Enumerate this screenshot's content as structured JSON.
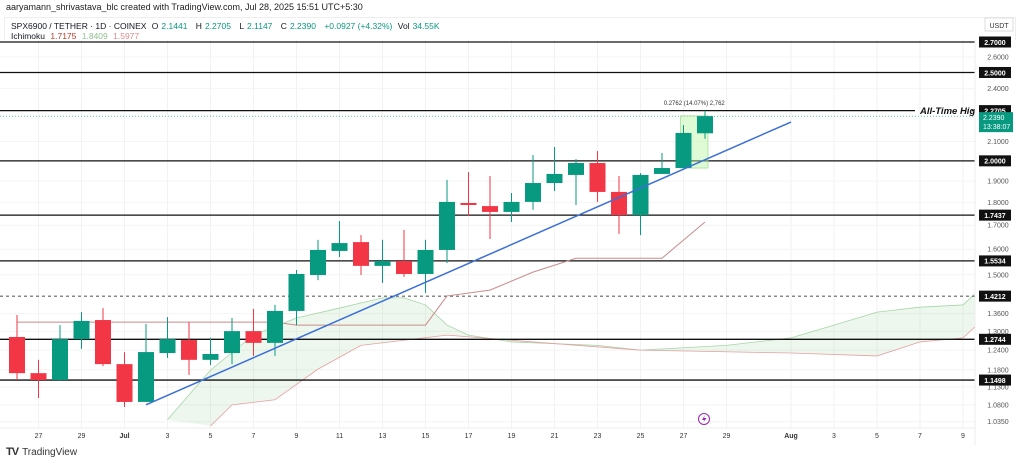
{
  "credit": "aaryamann_shrivastava_blc created with TradingView.com, Jul 28, 2025 15:51 UTC+5:30",
  "legend": {
    "symbol": "SPX6900 / TETHER · 1D · COINEX",
    "open_label": "O",
    "open": "2.1441",
    "high_label": "H",
    "high": "2.2705",
    "low_label": "L",
    "low": "2.1147",
    "close_label": "C",
    "close": "2.2390",
    "change": "+0.0927 (+4.32%)",
    "vol_label": "Vol",
    "vol": "34.55K",
    "indicator": "Ichimoku",
    "ichimoku_values": [
      "1.7175",
      "1.8409",
      "1.5977"
    ]
  },
  "brand": "TradingView",
  "colors": {
    "up": "#089981",
    "down": "#f23645",
    "trendline": "#3a6fd8",
    "cloud": "#4caf50",
    "ichimoku_line": "#c98b8b"
  },
  "chart_data": {
    "type": "candlestick",
    "scale": "log",
    "currency": "USDT",
    "ylim": [
      1.0,
      2.85
    ],
    "xlim": [
      "2025-06-25",
      "2025-08-10"
    ],
    "grid": true,
    "x_tick_labels": [
      {
        "date": "2025-06-27",
        "label": "27"
      },
      {
        "date": "2025-06-29",
        "label": "29"
      },
      {
        "date": "2025-07-01",
        "label": "Jul"
      },
      {
        "date": "2025-07-03",
        "label": "3"
      },
      {
        "date": "2025-07-05",
        "label": "5"
      },
      {
        "date": "2025-07-07",
        "label": "7"
      },
      {
        "date": "2025-07-09",
        "label": "9"
      },
      {
        "date": "2025-07-11",
        "label": "11"
      },
      {
        "date": "2025-07-13",
        "label": "13"
      },
      {
        "date": "2025-07-15",
        "label": "15"
      },
      {
        "date": "2025-07-17",
        "label": "17"
      },
      {
        "date": "2025-07-19",
        "label": "19"
      },
      {
        "date": "2025-07-21",
        "label": "21"
      },
      {
        "date": "2025-07-23",
        "label": "23"
      },
      {
        "date": "2025-07-25",
        "label": "25"
      },
      {
        "date": "2025-07-27",
        "label": "27"
      },
      {
        "date": "2025-07-29",
        "label": "29"
      },
      {
        "date": "2025-08-01",
        "label": "Aug"
      },
      {
        "date": "2025-08-03",
        "label": "3"
      },
      {
        "date": "2025-08-05",
        "label": "5"
      },
      {
        "date": "2025-08-07",
        "label": "7"
      },
      {
        "date": "2025-08-09",
        "label": "9"
      }
    ],
    "y_tick_labels": [
      "2.6000",
      "2.4000",
      "2.1000",
      "1.9000",
      "1.8000",
      "1.7000",
      "1.6000",
      "1.5000",
      "1.3600",
      "1.3000",
      "1.2400",
      "1.1800",
      "1.1300",
      "1.0800",
      "1.0350"
    ],
    "candles": [
      {
        "date": "2025-06-26",
        "o": 1.282,
        "h": 1.355,
        "l": 1.15,
        "c": 1.17
      },
      {
        "date": "2025-06-27",
        "o": 1.17,
        "h": 1.21,
        "l": 1.099,
        "c": 1.15
      },
      {
        "date": "2025-06-28",
        "o": 1.15,
        "h": 1.321,
        "l": 1.147,
        "c": 1.275
      },
      {
        "date": "2025-06-29",
        "o": 1.275,
        "h": 1.365,
        "l": 1.244,
        "c": 1.335
      },
      {
        "date": "2025-06-30",
        "o": 1.338,
        "h": 1.379,
        "l": 1.191,
        "c": 1.197
      },
      {
        "date": "2025-07-01",
        "o": 1.197,
        "h": 1.234,
        "l": 1.074,
        "c": 1.088
      },
      {
        "date": "2025-07-02",
        "o": 1.088,
        "h": 1.325,
        "l": 1.088,
        "c": 1.234
      },
      {
        "date": "2025-07-03",
        "o": 1.231,
        "h": 1.348,
        "l": 1.216,
        "c": 1.275
      },
      {
        "date": "2025-07-04",
        "o": 1.272,
        "h": 1.331,
        "l": 1.165,
        "c": 1.21
      },
      {
        "date": "2025-07-05",
        "o": 1.21,
        "h": 1.279,
        "l": 1.194,
        "c": 1.228
      },
      {
        "date": "2025-07-06",
        "o": 1.231,
        "h": 1.345,
        "l": 1.197,
        "c": 1.301
      },
      {
        "date": "2025-07-07",
        "o": 1.301,
        "h": 1.376,
        "l": 1.222,
        "c": 1.263
      },
      {
        "date": "2025-07-08",
        "o": 1.263,
        "h": 1.39,
        "l": 1.222,
        "c": 1.369
      },
      {
        "date": "2025-07-09",
        "o": 1.369,
        "h": 1.518,
        "l": 1.321,
        "c": 1.503
      },
      {
        "date": "2025-07-10",
        "o": 1.499,
        "h": 1.638,
        "l": 1.48,
        "c": 1.597
      },
      {
        "date": "2025-07-11",
        "o": 1.593,
        "h": 1.718,
        "l": 1.569,
        "c": 1.625
      },
      {
        "date": "2025-07-12",
        "o": 1.629,
        "h": 1.658,
        "l": 1.499,
        "c": 1.534
      },
      {
        "date": "2025-07-13",
        "o": 1.534,
        "h": 1.638,
        "l": 1.469,
        "c": 1.553
      },
      {
        "date": "2025-07-14",
        "o": 1.553,
        "h": 1.68,
        "l": 1.492,
        "c": 1.503
      },
      {
        "date": "2025-07-15",
        "o": 1.503,
        "h": 1.638,
        "l": 1.433,
        "c": 1.597
      },
      {
        "date": "2025-07-16",
        "o": 1.597,
        "h": 1.906,
        "l": 1.545,
        "c": 1.803
      },
      {
        "date": "2025-07-17",
        "o": 1.798,
        "h": 1.944,
        "l": 1.74,
        "c": 1.789
      },
      {
        "date": "2025-07-18",
        "o": 1.784,
        "h": 1.925,
        "l": 1.642,
        "c": 1.758
      },
      {
        "date": "2025-07-19",
        "o": 1.758,
        "h": 1.844,
        "l": 1.714,
        "c": 1.803
      },
      {
        "date": "2025-07-20",
        "o": 1.803,
        "h": 2.03,
        "l": 1.767,
        "c": 1.891
      },
      {
        "date": "2025-07-21",
        "o": 1.891,
        "h": 2.071,
        "l": 1.853,
        "c": 1.935
      },
      {
        "date": "2025-07-22",
        "o": 1.93,
        "h": 2.009,
        "l": 1.789,
        "c": 1.989
      },
      {
        "date": "2025-07-23",
        "o": 1.989,
        "h": 2.05,
        "l": 1.803,
        "c": 1.849
      },
      {
        "date": "2025-07-24",
        "o": 1.849,
        "h": 1.925,
        "l": 1.663,
        "c": 1.744
      },
      {
        "date": "2025-07-25",
        "o": 1.744,
        "h": 1.939,
        "l": 1.658,
        "c": 1.93
      },
      {
        "date": "2025-07-26",
        "o": 1.935,
        "h": 2.04,
        "l": 1.935,
        "c": 1.964
      },
      {
        "date": "2025-07-27",
        "o": 1.964,
        "h": 2.189,
        "l": 1.964,
        "c": 2.146
      },
      {
        "date": "2025-07-28",
        "o": 2.1441,
        "h": 2.2705,
        "l": 2.1147,
        "c": 2.239
      }
    ],
    "horizontal_levels": [
      {
        "price": 2.7,
        "label": "2.7000"
      },
      {
        "price": 2.5,
        "label": "2.5000"
      },
      {
        "price": 2.2705,
        "label": "2.2705",
        "annotation": "All-Time High"
      },
      {
        "price": 2.0,
        "label": "2.0000"
      },
      {
        "price": 1.7437,
        "label": "1.7437"
      },
      {
        "price": 1.5534,
        "label": "1.5534"
      },
      {
        "price": 1.4212,
        "label": "1.4212",
        "style": "dashed"
      },
      {
        "price": 1.2744,
        "label": "1.2744"
      },
      {
        "price": 1.1498,
        "label": "1.1498"
      }
    ],
    "last_price": {
      "price": 2.239,
      "label": "2.2390",
      "countdown": "13:38:07"
    },
    "trendline": [
      {
        "date": "2025-07-02",
        "price": 1.08
      },
      {
        "date": "2025-08-01",
        "price": 2.206
      }
    ],
    "measure": {
      "from_date": "2025-07-27",
      "to_date": "2025-07-28",
      "low": 1.964,
      "high": 2.2405,
      "label": "0.2762 (14.07%) 2,762"
    },
    "ichimoku_line": [
      {
        "date": "2025-06-26",
        "price": 1.331
      },
      {
        "date": "2025-07-08",
        "price": 1.331
      },
      {
        "date": "2025-07-09",
        "price": 1.321
      },
      {
        "date": "2025-07-15",
        "price": 1.321
      },
      {
        "date": "2025-07-16",
        "price": 1.422
      },
      {
        "date": "2025-07-18",
        "price": 1.443
      },
      {
        "date": "2025-07-20",
        "price": 1.51
      },
      {
        "date": "2025-07-22",
        "price": 1.564
      },
      {
        "date": "2025-07-26",
        "price": 1.564
      },
      {
        "date": "2025-07-28",
        "price": 1.714
      }
    ],
    "cloud_upper": [
      {
        "date": "2025-07-03",
        "price": 1.04
      },
      {
        "date": "2025-07-05",
        "price": 1.179
      },
      {
        "date": "2025-07-07",
        "price": 1.288
      },
      {
        "date": "2025-07-09",
        "price": 1.345
      },
      {
        "date": "2025-07-11",
        "price": 1.379
      },
      {
        "date": "2025-07-13",
        "price": 1.415
      },
      {
        "date": "2025-07-14",
        "price": 1.415
      },
      {
        "date": "2025-07-15",
        "price": 1.39
      },
      {
        "date": "2025-07-16",
        "price": 1.321
      },
      {
        "date": "2025-07-17",
        "price": 1.288
      },
      {
        "date": "2025-07-19",
        "price": 1.266
      },
      {
        "date": "2025-07-23",
        "price": 1.255
      },
      {
        "date": "2025-07-25",
        "price": 1.24
      },
      {
        "date": "2025-07-29",
        "price": 1.255
      },
      {
        "date": "2025-08-01",
        "price": 1.279
      },
      {
        "date": "2025-08-03",
        "price": 1.321
      },
      {
        "date": "2025-08-05",
        "price": 1.365
      },
      {
        "date": "2025-08-07",
        "price": 1.382
      },
      {
        "date": "2025-08-09",
        "price": 1.39
      },
      {
        "date": "2025-08-10",
        "price": 1.462
      }
    ],
    "cloud_lower": [
      {
        "date": "2025-07-05",
        "price": 1.024
      },
      {
        "date": "2025-07-06",
        "price": 1.08
      },
      {
        "date": "2025-07-08",
        "price": 1.094
      },
      {
        "date": "2025-07-10",
        "price": 1.182
      },
      {
        "date": "2025-07-12",
        "price": 1.255
      },
      {
        "date": "2025-07-16",
        "price": 1.288
      },
      {
        "date": "2025-07-20",
        "price": 1.266
      },
      {
        "date": "2025-07-25",
        "price": 1.24
      },
      {
        "date": "2025-08-01",
        "price": 1.231
      },
      {
        "date": "2025-08-05",
        "price": 1.222
      },
      {
        "date": "2025-08-07",
        "price": 1.266
      },
      {
        "date": "2025-08-09",
        "price": 1.279
      },
      {
        "date": "2025-08-10",
        "price": 1.345
      }
    ]
  }
}
